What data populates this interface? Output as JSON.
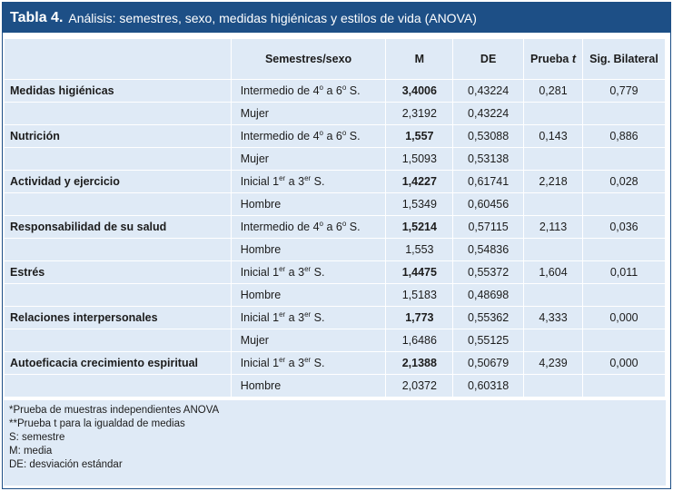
{
  "title": {
    "number": "Tabla 4.",
    "text": "Análisis: semestres, sexo, medidas higiénicas y estilos de vida (ANOVA)"
  },
  "headers": {
    "blank": "",
    "group": "Semestres/sexo",
    "m": "M",
    "de": "DE",
    "t": "Prueba t",
    "sig": "Sig. Bilateral"
  },
  "rows": [
    {
      "variable": "Medidas higiénicas",
      "g1": "Intermedio de 4º a 6º S.",
      "m1": "3,4006",
      "de1": "0,43224",
      "t": "0,281",
      "sig": "0,779",
      "g2": "Mujer",
      "m2": "2,3192",
      "de2": "0,43224"
    },
    {
      "variable": "Nutrición",
      "g1": "Intermedio de 4º a 6º S.",
      "m1": "1,557",
      "de1": "0,53088",
      "t": "0,143",
      "sig": "0,886",
      "g2": "Mujer",
      "m2": "1,5093",
      "de2": "0,53138"
    },
    {
      "variable": "Actividad y ejercicio",
      "g1": "Inicial 1er a 3er S.",
      "m1": "1,4227",
      "de1": "0,61741",
      "t": "2,218",
      "sig": "0,028",
      "g2": "Hombre",
      "m2": "1,5349",
      "de2": "0,60456"
    },
    {
      "variable": "Responsabilidad de su salud",
      "g1": "Intermedio de 4º a 6º S.",
      "m1": "1,5214",
      "de1": "0,57115",
      "t": "2,113",
      "sig": "0,036",
      "g2": "Hombre",
      "m2": "1,553",
      "de2": "0,54836"
    },
    {
      "variable": "Estrés",
      "g1": "Inicial 1er a 3er S.",
      "m1": "1,4475",
      "de1": "0,55372",
      "t": "1,604",
      "sig": "0,011",
      "g2": "Hombre",
      "m2": "1,5183",
      "de2": "0,48698"
    },
    {
      "variable": "Relaciones interpersonales",
      "g1": "Inicial 1er a 3er S.",
      "m1": "1,773",
      "de1": "0,55362",
      "t": "4,333",
      "sig": "0,000",
      "g2": "Mujer",
      "m2": "1,6486",
      "de2": "0,55125"
    },
    {
      "variable": "Autoeficacia crecimiento espiritual",
      "g1": "Inicial 1er a 3er S.",
      "m1": "2,1388",
      "de1": "0,50679",
      "t": "4,239",
      "sig": "0,000",
      "g2": "Hombre",
      "m2": "2,0372",
      "de2": "0,60318"
    }
  ],
  "notes": [
    "*Prueba de muestras independientes ANOVA",
    "**Prueba t para la igualdad de medias",
    "S: semestre",
    "M: media",
    "DE: desviación estándar"
  ],
  "colors": {
    "title_bg": "#1d4f86",
    "table_bg": "#dfeaf6",
    "border": "#ffffff"
  }
}
